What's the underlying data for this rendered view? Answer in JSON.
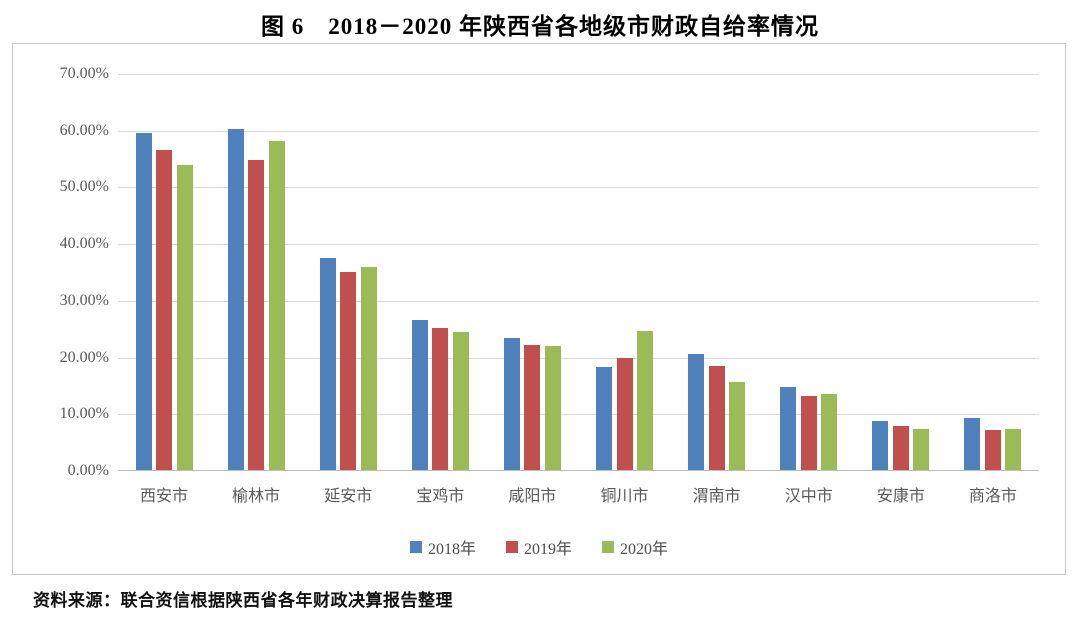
{
  "title": "图 6　2018－2020 年陕西省各地级市财政自给率情况",
  "source": "资料来源：联合资信根据陕西省各年财政决算报告整理",
  "colors": {
    "series_2018": "#4F81BD",
    "series_2019": "#C0504D",
    "series_2020": "#9BBB59",
    "gridline": "#d9d9d9",
    "axis_text": "#595959",
    "chart_border": "#c9c9c9"
  },
  "chart_data": {
    "type": "bar",
    "title": "图 6　2018－2020 年陕西省各地级市财政自给率情况",
    "categories": [
      "西安市",
      "榆林市",
      "延安市",
      "宝鸡市",
      "咸阳市",
      "铜川市",
      "渭南市",
      "汉中市",
      "安康市",
      "商洛市"
    ],
    "series": [
      {
        "name": "2018年",
        "color": "#4F81BD",
        "values": [
          59.5,
          60.2,
          37.3,
          26.5,
          23.3,
          18.2,
          20.5,
          14.7,
          8.7,
          9.2
        ]
      },
      {
        "name": "2019年",
        "color": "#C0504D",
        "values": [
          56.4,
          54.7,
          35.0,
          25.1,
          22.1,
          19.7,
          18.3,
          13.0,
          7.8,
          7.0
        ]
      },
      {
        "name": "2020年",
        "color": "#9BBB59",
        "values": [
          53.8,
          58.0,
          35.8,
          24.4,
          21.9,
          24.5,
          15.6,
          13.4,
          7.3,
          7.3
        ]
      }
    ],
    "xlabel": "",
    "ylabel": "",
    "ylim": [
      0,
      70
    ],
    "ytick_step": 10,
    "yticks": [
      "70.00%",
      "60.00%",
      "50.00%",
      "40.00%",
      "30.00%",
      "20.00%",
      "10.00%",
      "0.00%"
    ],
    "grid": true,
    "legend_position": "bottom"
  }
}
